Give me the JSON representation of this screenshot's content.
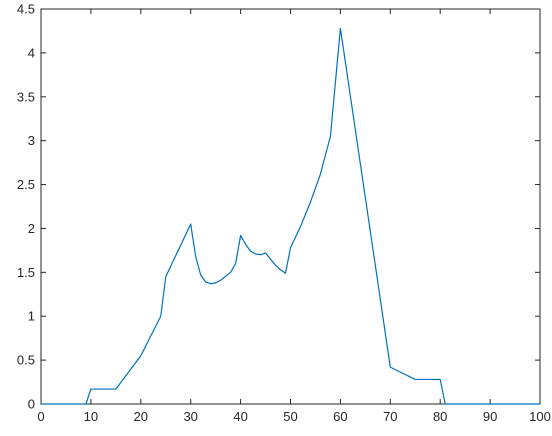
{
  "chart_data": {
    "type": "line",
    "title": "",
    "xlabel": "",
    "ylabel": "",
    "xlim": [
      0,
      100
    ],
    "ylim": [
      0,
      4.5
    ],
    "grid": false,
    "legend": "none",
    "x_ticks": [
      0,
      10,
      20,
      30,
      40,
      50,
      60,
      70,
      80,
      90,
      100
    ],
    "x_tick_labels": [
      "0",
      "10",
      "20",
      "30",
      "40",
      "50",
      "60",
      "70",
      "80",
      "90",
      "100"
    ],
    "y_ticks": [
      0,
      0.5,
      1,
      1.5,
      2,
      2.5,
      3,
      3.5,
      4,
      4.5
    ],
    "y_tick_labels": [
      "0",
      "0.5",
      "1",
      "1.5",
      "2",
      "2.5",
      "3",
      "3.5",
      "4",
      "4.5"
    ],
    "series": [
      {
        "color": "#0072BD",
        "x": [
          0,
          9,
          10,
          15,
          20,
          24,
          25,
          30,
          31,
          32,
          33,
          34,
          35,
          36,
          38,
          39,
          40,
          41,
          42,
          43,
          44,
          45,
          46,
          47,
          48,
          49,
          50,
          52,
          54,
          56,
          58,
          60,
          70,
          75,
          80,
          81,
          100
        ],
        "y": [
          0,
          0,
          0.17,
          0.17,
          0.55,
          1.0,
          1.45,
          2.05,
          1.68,
          1.47,
          1.39,
          1.37,
          1.38,
          1.41,
          1.5,
          1.6,
          1.92,
          1.82,
          1.74,
          1.71,
          1.7,
          1.72,
          1.65,
          1.58,
          1.53,
          1.49,
          1.78,
          2.02,
          2.3,
          2.62,
          3.05,
          4.28,
          0.42,
          0.28,
          0.28,
          0,
          0
        ]
      }
    ]
  },
  "colors": {
    "axis": "#262626",
    "background": "#ffffff"
  }
}
